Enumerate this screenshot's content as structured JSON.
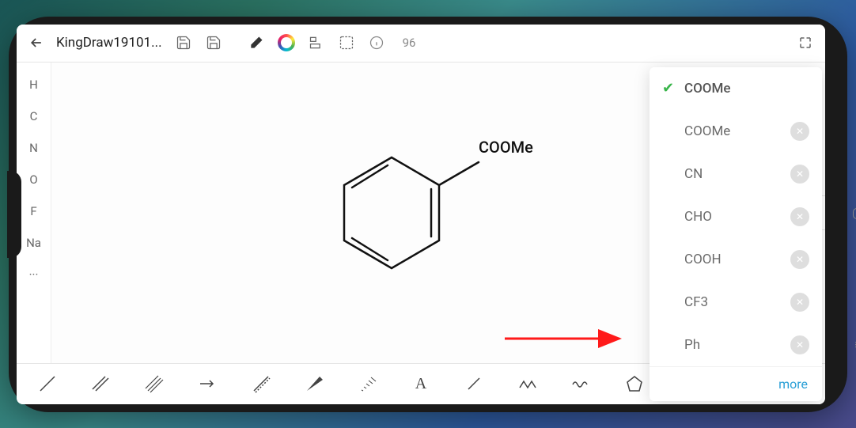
{
  "toolbar": {
    "title": "KingDraw19101...",
    "count": "96"
  },
  "left_elements": [
    "H",
    "C",
    "N",
    "O",
    "F",
    "Na",
    "···"
  ],
  "canvas": {
    "substituent_label": "COOMe"
  },
  "dropdown": {
    "items": [
      {
        "label": "COOMe",
        "selected": true,
        "deletable": false
      },
      {
        "label": "COOMe",
        "selected": false,
        "deletable": true
      },
      {
        "label": "CN",
        "selected": false,
        "deletable": true
      },
      {
        "label": "CHO",
        "selected": false,
        "deletable": true
      },
      {
        "label": "COOH",
        "selected": false,
        "deletable": true
      },
      {
        "label": "CF3",
        "selected": false,
        "deletable": true
      },
      {
        "label": "Ph",
        "selected": false,
        "deletable": true
      }
    ],
    "more_label": "more"
  },
  "arrow_color": "#ff1a1a"
}
